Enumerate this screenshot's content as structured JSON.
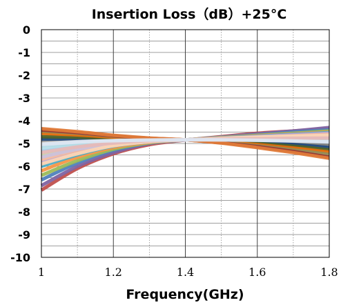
{
  "chart_data": {
    "type": "line",
    "title": "Insertion Loss（dB）+25°C",
    "xlabel": "Frequency(GHz)",
    "ylabel": "",
    "xlim": [
      1,
      1.8
    ],
    "ylim": [
      -10,
      0
    ],
    "x_ticks": [
      "1",
      "1.2",
      "1.4",
      "1.6",
      "1.8"
    ],
    "y_ticks": [
      "0",
      "-1",
      "-2",
      "-3",
      "-4",
      "-5",
      "-6",
      "-7",
      "-8",
      "-9",
      "-10"
    ],
    "grid": {
      "major_vertical": [
        1.2,
        1.4,
        1.6
      ],
      "minor_vertical_dotted": [
        1.1,
        1.3,
        1.5,
        1.7
      ],
      "horizontal_step": 0.5
    },
    "x": [
      1.0,
      1.1,
      1.2,
      1.3,
      1.4,
      1.5,
      1.6,
      1.7,
      1.8
    ],
    "series": [
      {
        "color": "#c0504d",
        "values": [
          -7.05,
          -6.1,
          -5.45,
          -5.05,
          -4.85,
          -4.7,
          -4.55,
          -4.45,
          -4.35
        ]
      },
      {
        "color": "#8064a2",
        "values": [
          -6.85,
          -6.0,
          -5.4,
          -5.0,
          -4.85,
          -4.72,
          -4.58,
          -4.45,
          -4.3
        ]
      },
      {
        "color": "#4f81bd",
        "values": [
          -6.6,
          -5.85,
          -5.3,
          -4.98,
          -4.84,
          -4.73,
          -4.62,
          -4.5,
          -4.4
        ]
      },
      {
        "color": "#9bbb59",
        "values": [
          -6.4,
          -5.75,
          -5.25,
          -4.97,
          -4.84,
          -4.74,
          -4.64,
          -4.55,
          -4.45
        ]
      },
      {
        "color": "#f79646",
        "values": [
          -6.2,
          -5.6,
          -5.18,
          -4.95,
          -4.84,
          -4.75,
          -4.66,
          -4.58,
          -4.5
        ]
      },
      {
        "color": "#4bacc6",
        "values": [
          -6.0,
          -5.5,
          -5.12,
          -4.93,
          -4.84,
          -4.76,
          -4.68,
          -4.6,
          -4.52
        ]
      },
      {
        "color": "#b9a5d6",
        "values": [
          -5.85,
          -5.4,
          -5.08,
          -4.92,
          -4.84,
          -4.77,
          -4.7,
          -4.62,
          -4.55
        ]
      },
      {
        "color": "#f2b8a0",
        "values": [
          -5.7,
          -5.3,
          -5.04,
          -4.9,
          -4.84,
          -4.78,
          -4.72,
          -4.66,
          -4.6
        ]
      },
      {
        "color": "#c6d9a6",
        "values": [
          -5.5,
          -5.2,
          -5.0,
          -4.88,
          -4.84,
          -4.8,
          -4.76,
          -4.72,
          -4.68
        ]
      },
      {
        "color": "#a9c7e8",
        "values": [
          -5.3,
          -5.08,
          -4.95,
          -4.87,
          -4.84,
          -4.82,
          -4.8,
          -4.78,
          -4.76
        ]
      },
      {
        "color": "#31859c",
        "values": [
          -5.1,
          -4.98,
          -4.9,
          -4.86,
          -4.84,
          -4.85,
          -4.88,
          -4.92,
          -4.98
        ]
      },
      {
        "color": "#7f7f7f",
        "values": [
          -4.95,
          -4.9,
          -4.86,
          -4.85,
          -4.84,
          -4.87,
          -4.92,
          -4.98,
          -5.08
        ]
      },
      {
        "color": "#1f497d",
        "values": [
          -4.8,
          -4.8,
          -4.82,
          -4.83,
          -4.84,
          -4.89,
          -4.96,
          -5.05,
          -5.18
        ]
      },
      {
        "color": "#4f6228",
        "values": [
          -4.7,
          -4.72,
          -4.77,
          -4.81,
          -4.84,
          -4.9,
          -5.0,
          -5.12,
          -5.28
        ]
      },
      {
        "color": "#e46c0a",
        "values": [
          -4.55,
          -4.62,
          -4.72,
          -4.8,
          -4.84,
          -4.93,
          -5.05,
          -5.2,
          -5.38
        ]
      },
      {
        "color": "#948a54",
        "values": [
          -4.45,
          -4.55,
          -4.68,
          -4.78,
          -4.84,
          -4.95,
          -5.1,
          -5.28,
          -5.48
        ]
      },
      {
        "color": "#953735",
        "values": [
          -4.4,
          -4.52,
          -4.66,
          -4.77,
          -4.84,
          -4.97,
          -5.14,
          -5.35,
          -5.6
        ]
      },
      {
        "color": "#e07b39",
        "values": [
          -4.35,
          -4.48,
          -4.64,
          -4.76,
          -4.84,
          -4.98,
          -5.18,
          -5.4,
          -5.65
        ]
      },
      {
        "color": "#d9d9d9",
        "values": [
          -5.0,
          -4.92,
          -4.87,
          -4.85,
          -4.84,
          -4.84,
          -4.85,
          -4.87,
          -4.9
        ]
      },
      {
        "color": "#ccc1da",
        "values": [
          -5.6,
          -5.25,
          -5.02,
          -4.89,
          -4.84,
          -4.79,
          -4.74,
          -4.7,
          -4.66
        ]
      },
      {
        "color": "#fcd5b4",
        "values": [
          -5.9,
          -5.45,
          -5.1,
          -4.92,
          -4.84,
          -4.78,
          -4.72,
          -4.68,
          -4.64
        ]
      },
      {
        "color": "#b7dee8",
        "values": [
          -5.2,
          -5.02,
          -4.92,
          -4.86,
          -4.84,
          -4.83,
          -4.83,
          -4.84,
          -4.86
        ]
      },
      {
        "color": "#e6b9b8",
        "values": [
          -5.4,
          -5.15,
          -4.98,
          -4.88,
          -4.84,
          -4.81,
          -4.79,
          -4.77,
          -4.76
        ]
      },
      {
        "color": "#dce6f2",
        "values": [
          -5.05,
          -4.94,
          -4.88,
          -4.85,
          -4.84,
          -4.84,
          -4.86,
          -4.89,
          -4.93
        ]
      }
    ]
  }
}
